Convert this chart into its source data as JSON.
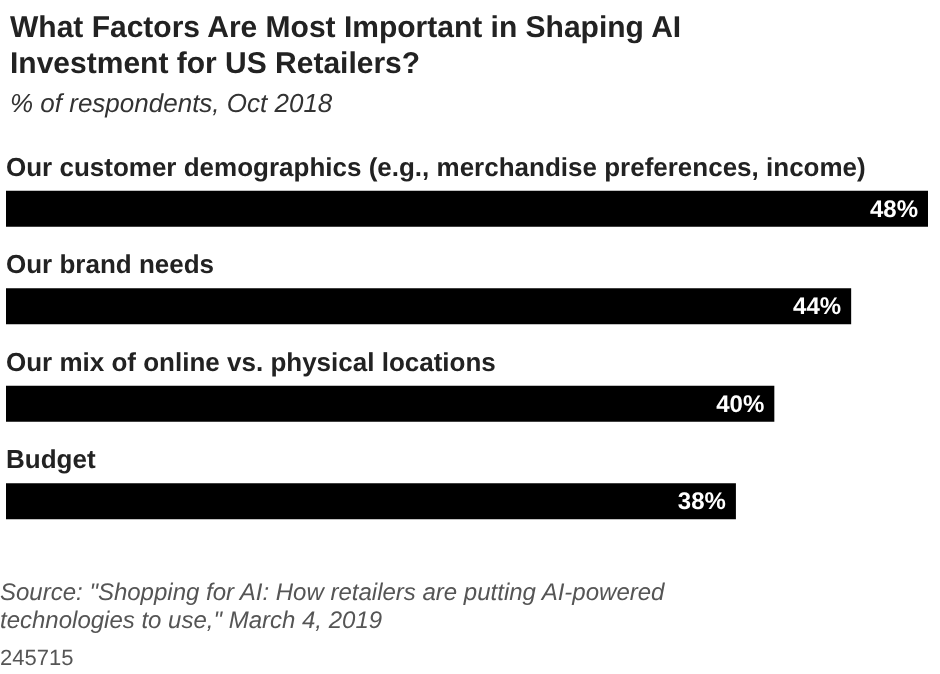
{
  "chart_data": {
    "type": "bar",
    "orientation": "horizontal",
    "title": "What Factors Are Most Important in Shaping AI Investment for US Retailers?",
    "subtitle": "% of respondents, Oct 2018",
    "categories": [
      "Our customer demographics (e.g., merchandise preferences, income)",
      "Our brand needs",
      "Our mix of online vs. physical locations",
      "Budget"
    ],
    "values": [
      48,
      44,
      40,
      38
    ],
    "value_labels": [
      "48%",
      "44%",
      "40%",
      "38%"
    ],
    "color": "#000000",
    "annotations": [
      "Source: \"Shopping for AI: How retailers are putting AI-powered technologies to use,\" March 4, 2019",
      "245715"
    ]
  }
}
